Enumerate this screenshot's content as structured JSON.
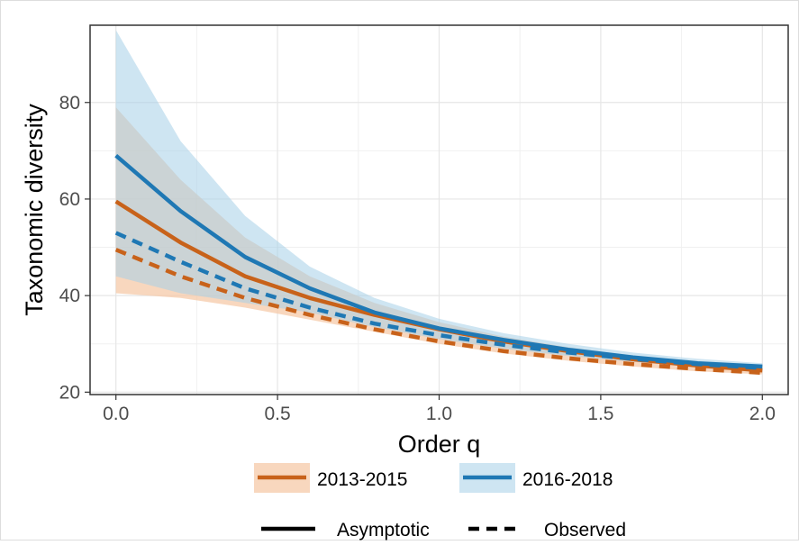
{
  "chart_data": {
    "type": "line",
    "xlabel": "Order q",
    "ylabel": "Taxonomic diversity",
    "xlim": [
      -0.08,
      2.08
    ],
    "ylim": [
      19.5,
      96
    ],
    "xticks": [
      0.0,
      0.5,
      1.0,
      1.5,
      2.0
    ],
    "xtick_labels": [
      "0.0",
      "0.5",
      "1.0",
      "1.5",
      "2.0"
    ],
    "yticks": [
      20,
      40,
      60,
      80
    ],
    "ytick_labels": [
      "20",
      "40",
      "60",
      "80"
    ],
    "grid": true,
    "x": [
      0.0,
      0.2,
      0.4,
      0.6,
      0.8,
      1.0,
      1.2,
      1.4,
      1.6,
      1.8,
      2.0
    ],
    "series": [
      {
        "name": "2013-2015",
        "color": "#c8621a",
        "ribbon_color": "#f5c9a8",
        "asymptotic": [
          59.5,
          51,
          44,
          39.5,
          36,
          33,
          30.5,
          28.5,
          26.8,
          25.5,
          24.5
        ],
        "observed": [
          49.5,
          44,
          39.5,
          36,
          33,
          30.5,
          28.5,
          27,
          25.8,
          24.8,
          24
        ],
        "lower": [
          40.5,
          39.5,
          37.5,
          35,
          32.5,
          30,
          28,
          26.5,
          25.3,
          24.3,
          23.7
        ],
        "upper": [
          79,
          64,
          52,
          44,
          38.5,
          34.5,
          31.5,
          29.3,
          27.5,
          26.2,
          25.3
        ]
      },
      {
        "name": "2016-2018",
        "color": "#1f78b4",
        "ribbon_color": "#a6d0e8",
        "asymptotic": [
          69,
          57.5,
          48,
          41.5,
          36.5,
          33.2,
          30.8,
          28.8,
          27.2,
          26,
          25.3
        ],
        "observed": [
          53,
          47,
          41.5,
          37.5,
          34.2,
          31.8,
          29.8,
          28.2,
          26.9,
          25.8,
          25
        ],
        "lower": [
          44,
          40.5,
          38.5,
          36.5,
          33.5,
          31,
          29,
          27.5,
          26.3,
          25.3,
          24.6
        ],
        "upper": [
          95,
          72,
          56.5,
          46,
          39.5,
          35.2,
          32.2,
          30,
          28.2,
          26.9,
          26
        ]
      }
    ],
    "legend": {
      "position": "bottom",
      "period_entries": [
        "2013-2015",
        "2016-2018"
      ],
      "linetype_entries": [
        "Asymptotic",
        "Observed"
      ]
    }
  }
}
